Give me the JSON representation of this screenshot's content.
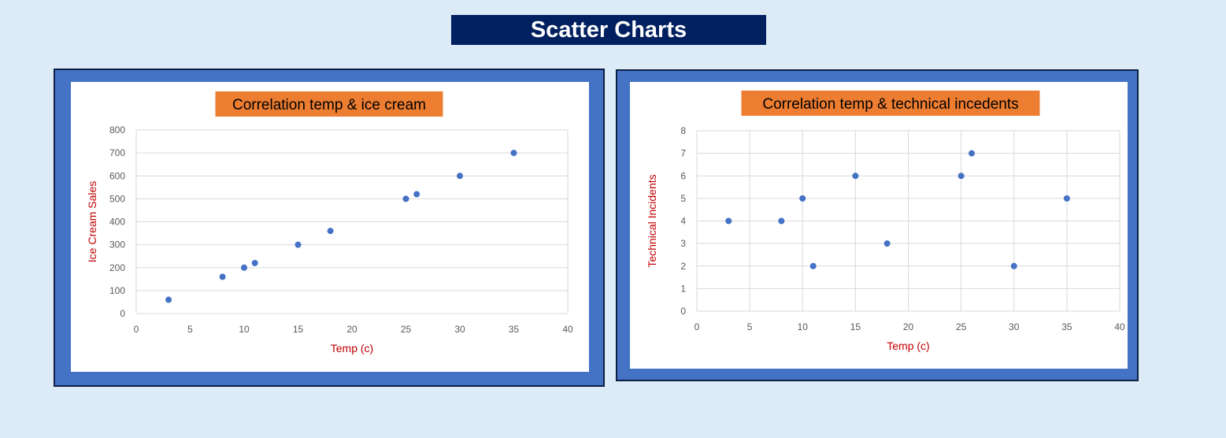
{
  "page_title": "Scatter Charts",
  "colors": {
    "background": "#ddebf7",
    "banner": "#002060",
    "frame": "#4472c4",
    "title_box": "#ed7d31",
    "marker": "#4472c4",
    "axis_title": "#c00000",
    "grid": "#d9d9d9"
  },
  "chart_data": [
    {
      "type": "scatter",
      "title": "Correlation temp & ice cream",
      "xlabel": "Temp (c)",
      "ylabel": "Ice Cream Sales",
      "xlim": [
        0,
        40
      ],
      "ylim": [
        0,
        800
      ],
      "xticks": [
        0,
        5,
        10,
        15,
        20,
        25,
        30,
        35,
        40
      ],
      "yticks": [
        0,
        100,
        200,
        300,
        400,
        500,
        600,
        700,
        800
      ],
      "grid": "horizontal",
      "points": [
        {
          "x": 3,
          "y": 60
        },
        {
          "x": 8,
          "y": 160
        },
        {
          "x": 10,
          "y": 200
        },
        {
          "x": 11,
          "y": 220
        },
        {
          "x": 15,
          "y": 300
        },
        {
          "x": 18,
          "y": 360
        },
        {
          "x": 25,
          "y": 500
        },
        {
          "x": 26,
          "y": 520
        },
        {
          "x": 30,
          "y": 600
        },
        {
          "x": 35,
          "y": 700
        }
      ]
    },
    {
      "type": "scatter",
      "title": "Correlation temp & technical incedents",
      "xlabel": "Temp (c)",
      "ylabel": "Technical Incidents",
      "xlim": [
        0,
        40
      ],
      "ylim": [
        0,
        8
      ],
      "xticks": [
        0,
        5,
        10,
        15,
        20,
        25,
        30,
        35,
        40
      ],
      "yticks": [
        0,
        1,
        2,
        3,
        4,
        5,
        6,
        7,
        8
      ],
      "grid": "both",
      "points": [
        {
          "x": 3,
          "y": 4
        },
        {
          "x": 8,
          "y": 4
        },
        {
          "x": 10,
          "y": 5
        },
        {
          "x": 11,
          "y": 2
        },
        {
          "x": 15,
          "y": 6
        },
        {
          "x": 18,
          "y": 3
        },
        {
          "x": 25,
          "y": 6
        },
        {
          "x": 26,
          "y": 7
        },
        {
          "x": 30,
          "y": 2
        },
        {
          "x": 35,
          "y": 5
        }
      ]
    }
  ]
}
